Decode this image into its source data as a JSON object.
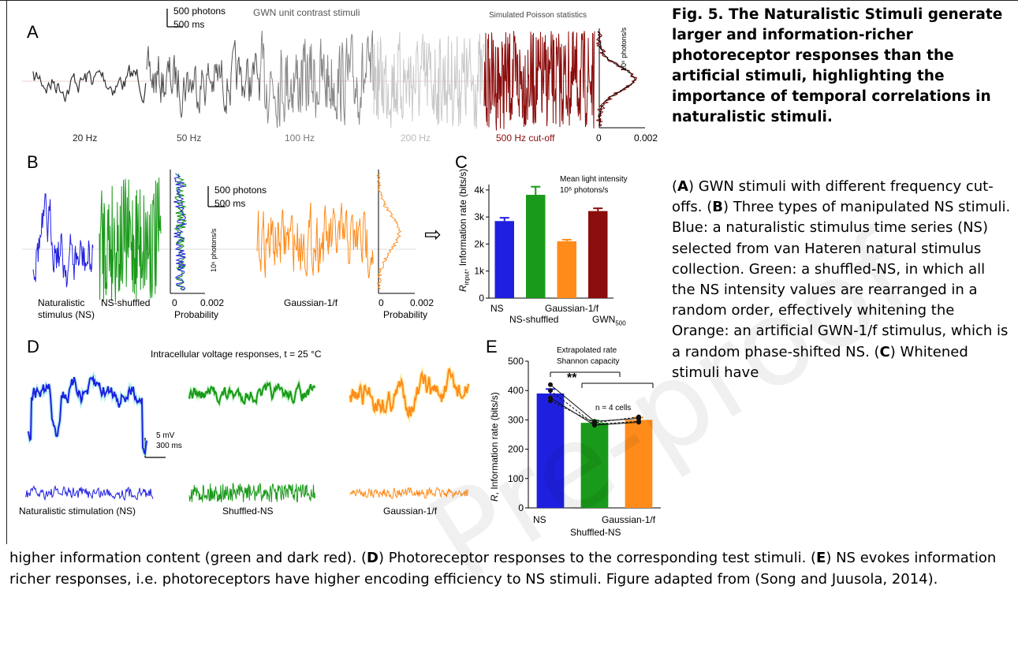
{
  "panels": {
    "A": {
      "label": "A",
      "scale_photons": "500 photons",
      "scale_ms": "500 ms",
      "title": "GWN unit contrast stimuli",
      "sim_title": "Simulated Poisson statistics",
      "freqs": [
        "20 Hz",
        "50 Hz",
        "100 Hz",
        "200 Hz",
        "500 Hz cut-off"
      ],
      "hist_ylabel": "10⁶ photons/s",
      "hist_x0": "0",
      "hist_x1": "0.002"
    },
    "B": {
      "label": "B",
      "scale_photons": "500 photons",
      "scale_ms": "500 ms",
      "ns_label_1": "Naturalistic",
      "ns_label_2": "stimulus (NS)",
      "shuffled_label": "NS-shuffled",
      "gauss_label": "Gaussian-1/f",
      "hist_ylabel": "10⁶ photons/s",
      "prob_label": "Probability",
      "prob_x0": "0",
      "prob_x1": "0.002",
      "arrow": "⇨"
    },
    "C": {
      "label": "C",
      "legend_1": "Mean light intensity",
      "legend_2": "10⁶ photons/s",
      "ylabel": "Information rate (bits/s)",
      "ylabel_prefix": "R",
      "ylabel_sub": "input",
      "yticks": [
        "0",
        "1k",
        "2k",
        "3k",
        "4k"
      ],
      "cat_1": "NS",
      "cat_2": "NS-shuffled",
      "cat_3": "Gaussian-1/f",
      "cat_4": "GWN",
      "cat_4_sub": "500"
    },
    "D": {
      "label": "D",
      "title": "Intracellular voltage responses, t = 25 °C",
      "scale_mv": "5 mV",
      "scale_ms": "300 ms",
      "ns_label": "Naturalistic stimulation (NS)",
      "shuffled_label": "Shuffled-NS",
      "gauss_label": "Gaussian-1/f"
    },
    "E": {
      "label": "E",
      "legend_1": "Extrapolated rate",
      "legend_2": "Shannon capacity",
      "sig": "**",
      "n_label": "n = 4 cells",
      "ylabel": "Information rate (bits/s)",
      "ylabel_prefix": "R",
      "yticks": [
        "0",
        "100",
        "200",
        "300",
        "400",
        "500"
      ],
      "cat_1": "NS",
      "cat_2": "Shuffled-NS",
      "cat_3": "Gaussian-1/f"
    }
  },
  "chart_data": [
    {
      "type": "bar",
      "panel": "C",
      "categories": [
        "NS",
        "NS-shuffled",
        "Gaussian-1/f",
        "GWN500"
      ],
      "values": [
        2850,
        3820,
        2100,
        3220
      ],
      "errors": [
        120,
        300,
        60,
        100
      ],
      "colors": [
        "#1f1fe0",
        "#1a9a1a",
        "#ff8c1a",
        "#8b0d0d"
      ],
      "ylim": [
        0,
        4200
      ],
      "yticks": [
        0,
        1000,
        2000,
        3000,
        4000
      ]
    },
    {
      "type": "bar",
      "panel": "E",
      "categories": [
        "NS",
        "Shuffled-NS",
        "Gaussian-1/f"
      ],
      "values": [
        390,
        290,
        300
      ],
      "errors": [
        15,
        8,
        8
      ],
      "colors": [
        "#1f1fe0",
        "#1a9a1a",
        "#ff8c1a"
      ],
      "ylim": [
        0,
        500
      ],
      "yticks": [
        0,
        100,
        200,
        300,
        400,
        500
      ],
      "cells": [
        [
          420,
          295,
          305
        ],
        [
          400,
          285,
          295
        ],
        [
          375,
          282,
          292
        ],
        [
          365,
          290,
          310
        ]
      ]
    }
  ],
  "colors": {
    "blue": "#1f1fe0",
    "green": "#1a9a1a",
    "orange": "#ff8c1a",
    "darkred": "#8b0d0d",
    "trace_black": "#333333"
  },
  "caption": {
    "head": "Fig. 5. The Naturalistic Stimuli generate larger and information-richer photoreceptor responses than the artificial stimuli, highlighting the importance of temporal correlations in naturalistic stimuli.",
    "a_letter": "A",
    "a_text": "GWN stimuli with different frequency cut-offs.",
    "b_letter": "B",
    "b_text": "Three types of manipulated NS stimuli. Blue: a naturalistic stimulus time series (NS) selected from van Hateren natural stimulus collection. Green: a shuffled-NS, in which all the NS intensity values are rearranged in a random order, effectively whitening the Orange: an artificial GWN-1/f stimulus, which is a random phase-shifted NS.",
    "c_letter": "C",
    "c_text": "Whitened stimuli have",
    "tail_1": "higher information content (green and dark red). (",
    "d_letter": "D",
    "d_text": ") Photoreceptor responses to the corresponding test stimuli. (",
    "e_letter": "E",
    "e_text": ") NS evokes information richer responses, i.e. photoreceptors have higher encoding efficiency to NS stimuli.  Figure adapted from (Song and Juusola, 2014)."
  },
  "watermark": "Pre-proof"
}
